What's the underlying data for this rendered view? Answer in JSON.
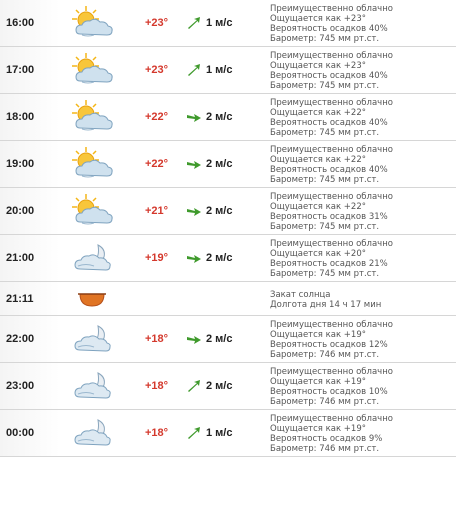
{
  "rows": [
    {
      "time": "16:00",
      "icon": "partly-cloudy-sun-icon",
      "temp": "+23°",
      "wind_dir": "up-right",
      "wind": "1 м/с",
      "info": [
        "Преимущественно облачно",
        "Ощущается как +23°",
        "Вероятность осадков 40%",
        "Барометр: 745 мм рт.ст."
      ]
    },
    {
      "time": "17:00",
      "icon": "partly-cloudy-sun-icon",
      "temp": "+23°",
      "wind_dir": "up-right",
      "wind": "1 м/с",
      "info": [
        "Преимущественно облачно",
        "Ощущается как +23°",
        "Вероятность осадков 40%",
        "Барометр: 745 мм рт.ст."
      ]
    },
    {
      "time": "18:00",
      "icon": "partly-cloudy-sun-icon",
      "temp": "+22°",
      "wind_dir": "right",
      "wind": "2 м/с",
      "info": [
        "Преимущественно облачно",
        "Ощущается как +22°",
        "Вероятность осадков 40%",
        "Барометр: 745 мм рт.ст."
      ]
    },
    {
      "time": "19:00",
      "icon": "partly-cloudy-sun-icon",
      "temp": "+22°",
      "wind_dir": "right",
      "wind": "2 м/с",
      "info": [
        "Преимущественно облачно",
        "Ощущается как +22°",
        "Вероятность осадков 40%",
        "Барометр: 745 мм рт.ст."
      ]
    },
    {
      "time": "20:00",
      "icon": "partly-cloudy-sun-icon",
      "temp": "+21°",
      "wind_dir": "right",
      "wind": "2 м/с",
      "info": [
        "Преимущественно облачно",
        "Ощущается как +22°",
        "Вероятность осадков 31%",
        "Барометр: 745 мм рт.ст."
      ]
    },
    {
      "time": "21:00",
      "icon": "partly-cloudy-moon-icon",
      "temp": "+19°",
      "wind_dir": "right",
      "wind": "2 м/с",
      "info": [
        "Преимущественно облачно",
        "Ощущается как +20°",
        "Вероятность осадков 21%",
        "Барометр: 745 мм рт.ст."
      ]
    },
    {
      "time": "21:11",
      "icon": "sunset-icon",
      "temp": "",
      "wind_dir": "",
      "wind": "",
      "sunset": true,
      "info": [
        "Закат солнца",
        "Долгота дня 14 ч 17 мин"
      ]
    },
    {
      "time": "22:00",
      "icon": "partly-cloudy-moon-icon",
      "temp": "+18°",
      "wind_dir": "right",
      "wind": "2 м/с",
      "info": [
        "Преимущественно облачно",
        "Ощущается как +19°",
        "Вероятность осадков 12%",
        "Барометр: 746 мм рт.ст."
      ]
    },
    {
      "time": "23:00",
      "icon": "partly-cloudy-moon-icon",
      "temp": "+18°",
      "wind_dir": "up-right",
      "wind": "2 м/с",
      "info": [
        "Преимущественно облачно",
        "Ощущается как +19°",
        "Вероятность осадков 10%",
        "Барометр: 746 мм рт.ст."
      ]
    },
    {
      "time": "00:00",
      "icon": "partly-cloudy-moon-icon",
      "temp": "+18°",
      "wind_dir": "up-right",
      "wind": "1 м/с",
      "info": [
        "Преимущественно облачно",
        "Ощущается как +19°",
        "Вероятность осадков 9%",
        "Барометр: 746 мм рт.ст."
      ]
    }
  ],
  "colors": {
    "temp": "#d4382c",
    "wind_arrow": "#3f9a2c",
    "sun": "#f4b618",
    "cloud": "#bcd4e6",
    "sunset": "#d9651f"
  }
}
